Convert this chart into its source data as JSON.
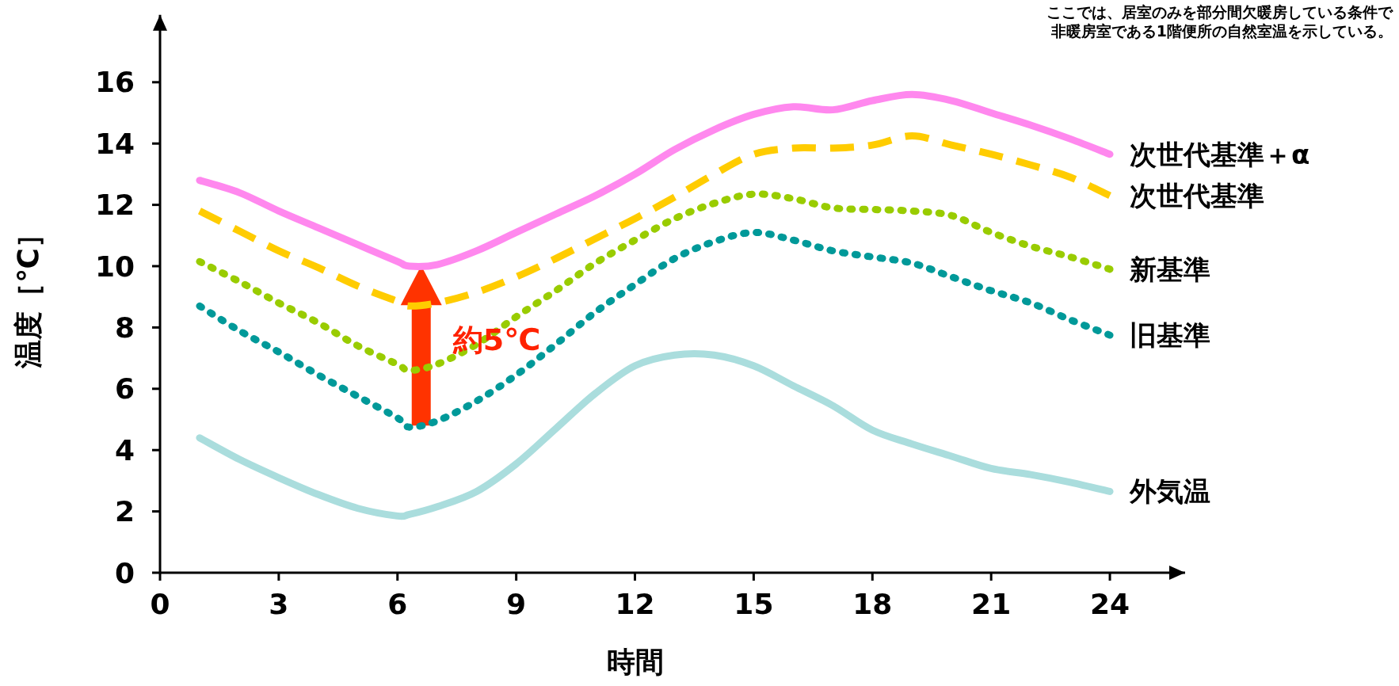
{
  "chart_data": {
    "type": "line",
    "xlabel": "時間",
    "ylabel": "温度［℃］",
    "annotations": [
      "ここでは、居室のみを部分間欠暖房している条件で",
      "非暖房室である1階便所の自然室温を示している。",
      {
        "text": "約5℃",
        "x": 6.6,
        "y": 4.8
      }
    ],
    "x": [
      1,
      2,
      3,
      4,
      5,
      6,
      6.3,
      7,
      8,
      9,
      10,
      11,
      12,
      13,
      14,
      15,
      16,
      17,
      18,
      19,
      20,
      21,
      22,
      23,
      24
    ],
    "series": [
      {
        "name": "次世代基準＋α",
        "color": "#ff88ee",
        "line_style": "solid",
        "values": [
          12.8,
          12.4,
          11.8,
          11.25,
          10.7,
          10.15,
          10.0,
          10.05,
          10.5,
          11.1,
          11.7,
          12.3,
          13.0,
          13.8,
          14.45,
          14.95,
          15.2,
          15.1,
          15.4,
          15.6,
          15.4,
          15.0,
          14.6,
          14.15,
          13.65
        ]
      },
      {
        "name": "次世代基準",
        "color": "#ffcc00",
        "line_style": "dashed",
        "values": [
          11.8,
          11.15,
          10.5,
          9.95,
          9.35,
          8.85,
          8.7,
          8.8,
          9.15,
          9.65,
          10.25,
          10.9,
          11.55,
          12.25,
          13.0,
          13.65,
          13.85,
          13.85,
          13.95,
          14.25,
          13.95,
          13.65,
          13.3,
          12.9,
          12.3
        ]
      },
      {
        "name": "新基準",
        "color": "#99cc00",
        "line_style": "dotted",
        "values": [
          10.15,
          9.5,
          8.8,
          8.15,
          7.4,
          6.8,
          6.6,
          6.8,
          7.45,
          8.35,
          9.2,
          10.1,
          10.85,
          11.55,
          12.05,
          12.35,
          12.2,
          11.9,
          11.85,
          11.8,
          11.65,
          11.1,
          10.65,
          10.3,
          9.9
        ]
      },
      {
        "name": "旧基準",
        "color": "#009999",
        "line_style": "dotted",
        "values": [
          8.7,
          7.9,
          7.2,
          6.45,
          5.75,
          5.05,
          4.75,
          4.95,
          5.6,
          6.45,
          7.45,
          8.5,
          9.4,
          10.25,
          10.8,
          11.1,
          10.85,
          10.5,
          10.3,
          10.1,
          9.65,
          9.2,
          8.8,
          8.25,
          7.75
        ]
      },
      {
        "name": "外気温",
        "color": "#aadddd",
        "line_style": "solid",
        "values": [
          4.4,
          3.7,
          3.1,
          2.55,
          2.1,
          1.85,
          1.9,
          2.15,
          2.65,
          3.55,
          4.7,
          5.85,
          6.75,
          7.1,
          7.1,
          6.75,
          6.1,
          5.45,
          4.65,
          4.2,
          3.8,
          3.4,
          3.2,
          2.95,
          2.65
        ]
      }
    ],
    "xlim": [
      0,
      25.9
    ],
    "ylim": [
      0,
      18.2
    ],
    "xticks": [
      0,
      3,
      6,
      9,
      12,
      15,
      18,
      21,
      24
    ],
    "yticks": [
      0,
      2,
      4,
      6,
      8,
      10,
      12,
      14,
      16
    ],
    "grid": false
  }
}
